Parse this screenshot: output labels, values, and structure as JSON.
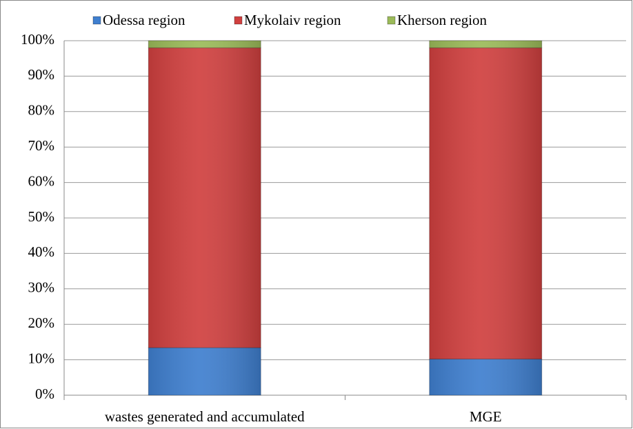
{
  "chart_data": {
    "type": "stacked_bar",
    "categories": [
      "wastes generated and accumulated",
      "MGE"
    ],
    "series": [
      {
        "name": "Odessa region",
        "color": "#3f7fcf",
        "values": [
          13.4,
          10.2
        ]
      },
      {
        "name": "Mykolaiv region",
        "color": "#d0403f",
        "values": [
          84.6,
          87.8
        ]
      },
      {
        "name": "Kherson region",
        "color": "#9bbb59",
        "values": [
          2,
          2
        ]
      }
    ],
    "ylim": [
      0,
      100
    ],
    "yticks": [
      {
        "value": 0,
        "label": "0%"
      },
      {
        "value": 10,
        "label": "10%"
      },
      {
        "value": 20,
        "label": "20%"
      },
      {
        "value": 30,
        "label": "30%"
      },
      {
        "value": 40,
        "label": "40%"
      },
      {
        "value": 50,
        "label": "50%"
      },
      {
        "value": 60,
        "label": "60%"
      },
      {
        "value": 70,
        "label": "70%"
      },
      {
        "value": 80,
        "label": "80%"
      },
      {
        "value": 90,
        "label": "90%"
      },
      {
        "value": 100,
        "label": "100%"
      }
    ],
    "grid": true,
    "legend": "top"
  }
}
